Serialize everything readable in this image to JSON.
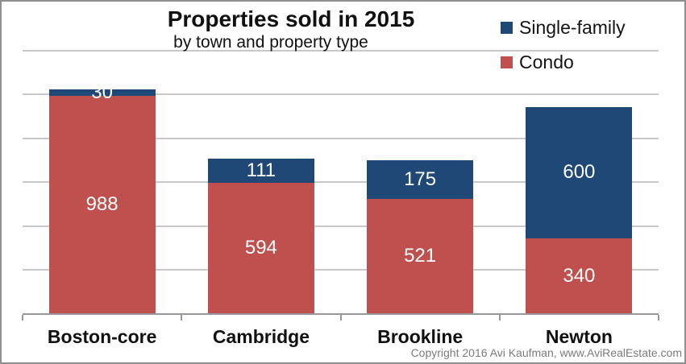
{
  "title": "Properties sold in 2015",
  "subtitle": "by town and property type",
  "legend": [
    {
      "label": "Single-family",
      "color": "#1f4877"
    },
    {
      "label": "Condo",
      "color": "#bf504d"
    }
  ],
  "copyright": "Copyright 2016 Avi Kaufman, www.AviRealEstate.com",
  "chart_data": {
    "type": "bar",
    "stacked": true,
    "title": "Properties sold in 2015",
    "subtitle": "by town and property type",
    "categories": [
      "Boston-core",
      "Cambridge",
      "Brookline",
      "Newton"
    ],
    "series": [
      {
        "name": "Condo",
        "color": "#bf504d",
        "values": [
          988,
          594,
          521,
          340
        ]
      },
      {
        "name": "Single-family",
        "color": "#1f4877",
        "values": [
          30,
          111,
          175,
          600
        ]
      }
    ],
    "ylim": [
      0,
      1400
    ],
    "gridline_step": 200,
    "grid": true,
    "legend_position": "top-right",
    "value_labels": "inside-center-white"
  },
  "colors": {
    "grid": "#c9c9c9",
    "axis": "#97979c",
    "frame_border": "#8f8f8f",
    "text": "#111111",
    "value_label": "#ffffff",
    "copyright": "#7c7c7c"
  }
}
